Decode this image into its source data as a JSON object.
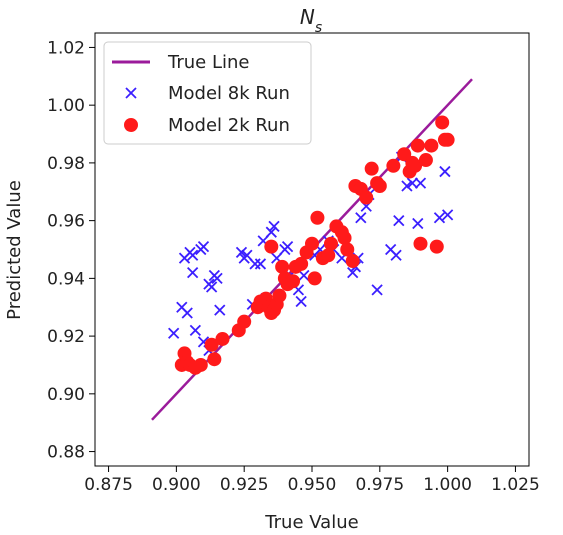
{
  "chart_data": {
    "type": "scatter",
    "title_main": "N",
    "title_sub": "s",
    "xlabel": "True Value",
    "ylabel": "Predicted Value",
    "xlim": [
      0.87,
      1.03
    ],
    "ylim": [
      0.875,
      1.025
    ],
    "xticks": [
      "0.875",
      "0.900",
      "0.925",
      "0.950",
      "0.975",
      "1.000",
      "1.025"
    ],
    "yticks": [
      "0.88",
      "0.90",
      "0.92",
      "0.94",
      "0.96",
      "0.98",
      "1.00",
      "1.02"
    ],
    "legend_position": "top-left",
    "true_line": {
      "name": "True Line",
      "color": "#9b1b9b",
      "x": [
        0.891,
        1.009
      ],
      "y": [
        0.891,
        1.009
      ]
    },
    "series": [
      {
        "name": "Model 8k Run",
        "marker": "x",
        "color": "#3b1fff",
        "x": [
          0.899,
          0.902,
          0.903,
          0.904,
          0.905,
          0.906,
          0.906,
          0.907,
          0.909,
          0.91,
          0.912,
          0.913,
          0.914,
          0.915,
          0.916,
          0.91,
          0.912,
          0.924,
          0.925,
          0.926,
          0.928,
          0.929,
          0.931,
          0.932,
          0.933,
          0.935,
          0.936,
          0.937,
          0.94,
          0.941,
          0.942,
          0.945,
          0.946,
          0.947,
          0.951,
          0.953,
          0.956,
          0.958,
          0.961,
          0.965,
          0.966,
          0.967,
          0.968,
          0.97,
          0.971,
          0.974,
          0.979,
          0.981,
          0.982,
          0.983,
          0.985,
          0.987,
          0.989,
          0.99,
          0.997,
          1.0,
          0.999
        ],
        "y": [
          0.921,
          0.93,
          0.947,
          0.928,
          0.949,
          0.948,
          0.942,
          0.922,
          0.95,
          0.951,
          0.938,
          0.937,
          0.941,
          0.94,
          0.929,
          0.918,
          0.915,
          0.949,
          0.947,
          0.948,
          0.931,
          0.945,
          0.945,
          0.953,
          0.933,
          0.956,
          0.958,
          0.947,
          0.95,
          0.951,
          0.941,
          0.936,
          0.932,
          0.941,
          0.948,
          0.95,
          0.953,
          0.95,
          0.947,
          0.942,
          0.944,
          0.947,
          0.961,
          0.965,
          0.969,
          0.936,
          0.95,
          0.948,
          0.96,
          0.982,
          0.972,
          0.973,
          0.959,
          0.973,
          0.961,
          0.962,
          0.977
        ]
      },
      {
        "name": "Model 2k Run",
        "marker": "o",
        "color": "#ff1a1a",
        "x": [
          0.902,
          0.903,
          0.904,
          0.905,
          0.907,
          0.909,
          0.913,
          0.914,
          0.917,
          0.923,
          0.925,
          0.93,
          0.931,
          0.933,
          0.934,
          0.935,
          0.936,
          0.937,
          0.938,
          0.94,
          0.941,
          0.943,
          0.944,
          0.946,
          0.948,
          0.95,
          0.951,
          0.952,
          0.954,
          0.956,
          0.957,
          0.959,
          0.961,
          0.963,
          0.965,
          0.966,
          0.968,
          0.97,
          0.972,
          0.974,
          0.975,
          0.98,
          0.984,
          0.986,
          0.987,
          0.988,
          0.989,
          0.99,
          0.992,
          0.994,
          0.996,
          0.998,
          0.999,
          1.0,
          0.935,
          0.939,
          0.962
        ],
        "y": [
          0.91,
          0.914,
          0.911,
          0.91,
          0.909,
          0.91,
          0.917,
          0.912,
          0.919,
          0.922,
          0.925,
          0.93,
          0.932,
          0.933,
          0.93,
          0.928,
          0.929,
          0.931,
          0.934,
          0.94,
          0.938,
          0.939,
          0.944,
          0.945,
          0.949,
          0.952,
          0.94,
          0.961,
          0.947,
          0.948,
          0.952,
          0.958,
          0.956,
          0.95,
          0.946,
          0.972,
          0.971,
          0.968,
          0.978,
          0.973,
          0.972,
          0.979,
          0.983,
          0.977,
          0.98,
          0.979,
          0.986,
          0.952,
          0.981,
          0.986,
          0.951,
          0.994,
          0.988,
          0.988,
          0.951,
          0.944,
          0.954
        ]
      }
    ]
  }
}
